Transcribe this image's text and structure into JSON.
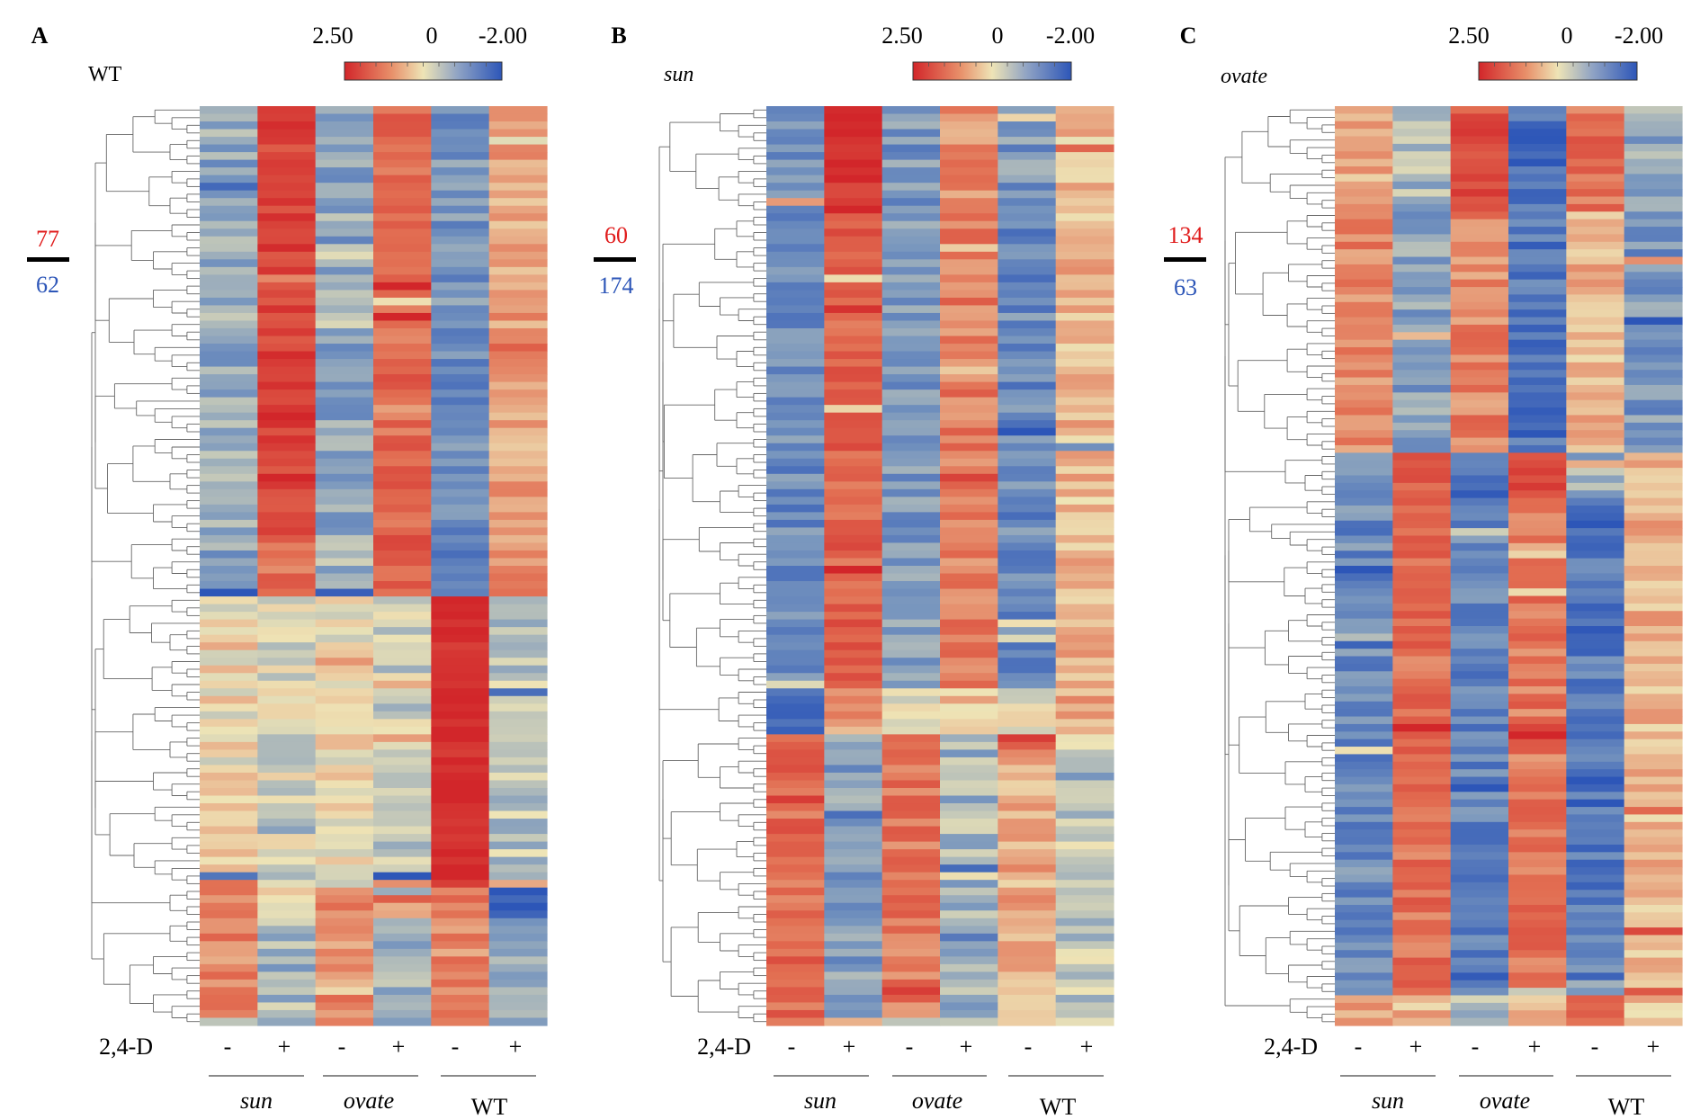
{
  "chart_data": [
    {
      "type": "heatmap",
      "panel": "A",
      "genotype": "WT",
      "up_count": "77",
      "down_count": "62",
      "colorbar": {
        "max_label": "2.50",
        "mid_label": "0",
        "min_label": "-2.00",
        "max": 2.5,
        "min": -2.0
      },
      "treatment_label": "2,4-D",
      "columns": [
        "-",
        "+",
        "-",
        "+",
        "-",
        "+"
      ],
      "groups": [
        "sun",
        "ovate",
        "WT"
      ],
      "blocks": [
        {
          "rows": 56,
          "values": [
            -0.8,
            2.0,
            -0.8,
            1.4,
            -1.1,
            0.7
          ]
        },
        {
          "rows": 8,
          "values": [
            -0.6,
            1.3,
            -0.6,
            1.6,
            -1.4,
            1.0
          ]
        },
        {
          "rows": 38,
          "values": [
            0.1,
            -0.2,
            0.1,
            -0.3,
            2.5,
            -0.4
          ]
        },
        {
          "rows": 4,
          "values": [
            0.9,
            0.3,
            0.9,
            0.2,
            1.0,
            -2.0
          ]
        },
        {
          "rows": 14,
          "values": [
            1.0,
            -0.6,
            0.9,
            -0.6,
            1.0,
            -0.7
          ]
        }
      ]
    },
    {
      "type": "heatmap",
      "panel": "B",
      "genotype": "sun",
      "up_count": "60",
      "down_count": "174",
      "colorbar": {
        "max_label": "2.50",
        "mid_label": "0",
        "min_label": "-2.00",
        "max": 2.5,
        "min": -2.0
      },
      "treatment_label": "2,4-D",
      "columns": [
        "-",
        "+",
        "-",
        "+",
        "-",
        "+"
      ],
      "groups": [
        "sun",
        "ovate",
        "WT"
      ],
      "blocks": [
        {
          "rows": 14,
          "values": [
            -1.0,
            2.3,
            -1.0,
            0.9,
            -1.0,
            0.4
          ]
        },
        {
          "rows": 62,
          "values": [
            -1.2,
            1.5,
            -1.0,
            1.1,
            -1.2,
            0.5
          ]
        },
        {
          "rows": 6,
          "values": [
            -1.6,
            0.8,
            -0.3,
            0.4,
            -0.2,
            0.6
          ]
        },
        {
          "rows": 38,
          "values": [
            1.4,
            -0.9,
            1.2,
            -0.6,
            0.6,
            -0.4
          ]
        }
      ]
    },
    {
      "type": "heatmap",
      "panel": "C",
      "genotype": "ovate",
      "up_count": "134",
      "down_count": "63",
      "colorbar": {
        "max_label": "2.50",
        "mid_label": "0",
        "min_label": "-2.00",
        "max": 2.5,
        "min": -2.0
      },
      "treatment_label": "2,4-D",
      "columns": [
        "-",
        "+",
        "-",
        "+",
        "-",
        "+"
      ],
      "groups": [
        "sun",
        "ovate",
        "WT"
      ],
      "blocks": [
        {
          "rows": 14,
          "values": [
            0.6,
            -0.6,
            1.8,
            -1.6,
            1.3,
            -0.8
          ]
        },
        {
          "rows": 32,
          "values": [
            1.0,
            -0.9,
            1.0,
            -1.5,
            0.5,
            -1.0
          ]
        },
        {
          "rows": 6,
          "values": [
            -1.0,
            1.6,
            -1.6,
            2.0,
            -0.6,
            0.6
          ]
        },
        {
          "rows": 66,
          "values": [
            -1.2,
            1.3,
            -1.3,
            1.2,
            -1.4,
            0.5
          ]
        },
        {
          "rows": 4,
          "values": [
            0.8,
            0.5,
            -0.6,
            0.6,
            1.6,
            0.4
          ]
        }
      ]
    }
  ],
  "legend_colors": {
    "high": "#d2262a",
    "mid": "#eee4b6",
    "low": "#2d56b8",
    "up_count_color": "#e01b1b",
    "down_count_color": "#2d56b8"
  }
}
